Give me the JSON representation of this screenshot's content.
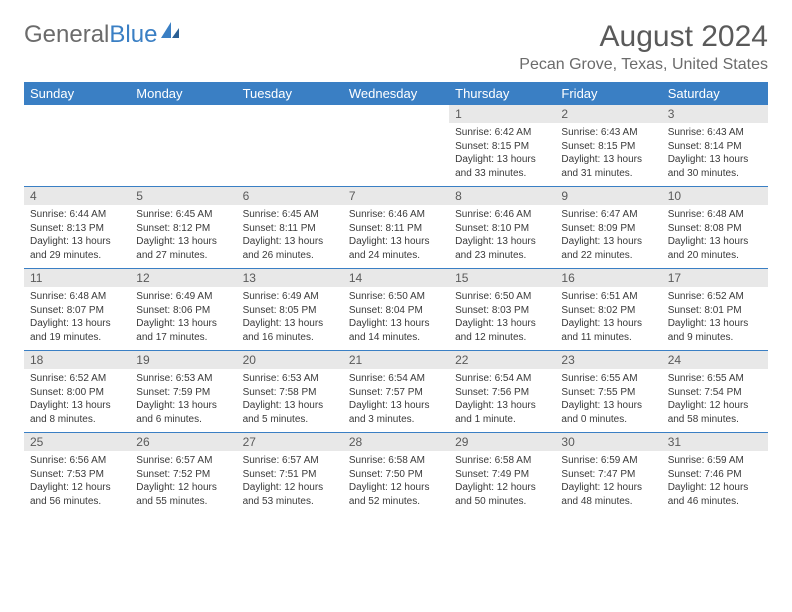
{
  "colors": {
    "header_bg": "#3a7fc4",
    "header_text": "#ffffff",
    "daynum_bg": "#e8e8e8",
    "body_text": "#3a3a3a",
    "muted_text": "#6b6b6b",
    "rule": "#3a7fc4",
    "logo_gray": "#6b6b6b",
    "logo_blue": "#3a7fc4",
    "page_bg": "#ffffff"
  },
  "typography": {
    "font_family": "Arial, Helvetica, sans-serif",
    "month_title_size": 30,
    "location_size": 16,
    "dayheader_size": 13,
    "daynum_size": 12,
    "detail_size": 10
  },
  "logo": {
    "part1": "General",
    "part2": "Blue"
  },
  "title": "August 2024",
  "location": "Pecan Grove, Texas, United States",
  "day_headers": [
    "Sunday",
    "Monday",
    "Tuesday",
    "Wednesday",
    "Thursday",
    "Friday",
    "Saturday"
  ],
  "weeks": [
    [
      null,
      null,
      null,
      null,
      {
        "n": "1",
        "sr": "Sunrise: 6:42 AM",
        "ss": "Sunset: 8:15 PM",
        "dl": "Daylight: 13 hours and 33 minutes."
      },
      {
        "n": "2",
        "sr": "Sunrise: 6:43 AM",
        "ss": "Sunset: 8:15 PM",
        "dl": "Daylight: 13 hours and 31 minutes."
      },
      {
        "n": "3",
        "sr": "Sunrise: 6:43 AM",
        "ss": "Sunset: 8:14 PM",
        "dl": "Daylight: 13 hours and 30 minutes."
      }
    ],
    [
      {
        "n": "4",
        "sr": "Sunrise: 6:44 AM",
        "ss": "Sunset: 8:13 PM",
        "dl": "Daylight: 13 hours and 29 minutes."
      },
      {
        "n": "5",
        "sr": "Sunrise: 6:45 AM",
        "ss": "Sunset: 8:12 PM",
        "dl": "Daylight: 13 hours and 27 minutes."
      },
      {
        "n": "6",
        "sr": "Sunrise: 6:45 AM",
        "ss": "Sunset: 8:11 PM",
        "dl": "Daylight: 13 hours and 26 minutes."
      },
      {
        "n": "7",
        "sr": "Sunrise: 6:46 AM",
        "ss": "Sunset: 8:11 PM",
        "dl": "Daylight: 13 hours and 24 minutes."
      },
      {
        "n": "8",
        "sr": "Sunrise: 6:46 AM",
        "ss": "Sunset: 8:10 PM",
        "dl": "Daylight: 13 hours and 23 minutes."
      },
      {
        "n": "9",
        "sr": "Sunrise: 6:47 AM",
        "ss": "Sunset: 8:09 PM",
        "dl": "Daylight: 13 hours and 22 minutes."
      },
      {
        "n": "10",
        "sr": "Sunrise: 6:48 AM",
        "ss": "Sunset: 8:08 PM",
        "dl": "Daylight: 13 hours and 20 minutes."
      }
    ],
    [
      {
        "n": "11",
        "sr": "Sunrise: 6:48 AM",
        "ss": "Sunset: 8:07 PM",
        "dl": "Daylight: 13 hours and 19 minutes."
      },
      {
        "n": "12",
        "sr": "Sunrise: 6:49 AM",
        "ss": "Sunset: 8:06 PM",
        "dl": "Daylight: 13 hours and 17 minutes."
      },
      {
        "n": "13",
        "sr": "Sunrise: 6:49 AM",
        "ss": "Sunset: 8:05 PM",
        "dl": "Daylight: 13 hours and 16 minutes."
      },
      {
        "n": "14",
        "sr": "Sunrise: 6:50 AM",
        "ss": "Sunset: 8:04 PM",
        "dl": "Daylight: 13 hours and 14 minutes."
      },
      {
        "n": "15",
        "sr": "Sunrise: 6:50 AM",
        "ss": "Sunset: 8:03 PM",
        "dl": "Daylight: 13 hours and 12 minutes."
      },
      {
        "n": "16",
        "sr": "Sunrise: 6:51 AM",
        "ss": "Sunset: 8:02 PM",
        "dl": "Daylight: 13 hours and 11 minutes."
      },
      {
        "n": "17",
        "sr": "Sunrise: 6:52 AM",
        "ss": "Sunset: 8:01 PM",
        "dl": "Daylight: 13 hours and 9 minutes."
      }
    ],
    [
      {
        "n": "18",
        "sr": "Sunrise: 6:52 AM",
        "ss": "Sunset: 8:00 PM",
        "dl": "Daylight: 13 hours and 8 minutes."
      },
      {
        "n": "19",
        "sr": "Sunrise: 6:53 AM",
        "ss": "Sunset: 7:59 PM",
        "dl": "Daylight: 13 hours and 6 minutes."
      },
      {
        "n": "20",
        "sr": "Sunrise: 6:53 AM",
        "ss": "Sunset: 7:58 PM",
        "dl": "Daylight: 13 hours and 5 minutes."
      },
      {
        "n": "21",
        "sr": "Sunrise: 6:54 AM",
        "ss": "Sunset: 7:57 PM",
        "dl": "Daylight: 13 hours and 3 minutes."
      },
      {
        "n": "22",
        "sr": "Sunrise: 6:54 AM",
        "ss": "Sunset: 7:56 PM",
        "dl": "Daylight: 13 hours and 1 minute."
      },
      {
        "n": "23",
        "sr": "Sunrise: 6:55 AM",
        "ss": "Sunset: 7:55 PM",
        "dl": "Daylight: 13 hours and 0 minutes."
      },
      {
        "n": "24",
        "sr": "Sunrise: 6:55 AM",
        "ss": "Sunset: 7:54 PM",
        "dl": "Daylight: 12 hours and 58 minutes."
      }
    ],
    [
      {
        "n": "25",
        "sr": "Sunrise: 6:56 AM",
        "ss": "Sunset: 7:53 PM",
        "dl": "Daylight: 12 hours and 56 minutes."
      },
      {
        "n": "26",
        "sr": "Sunrise: 6:57 AM",
        "ss": "Sunset: 7:52 PM",
        "dl": "Daylight: 12 hours and 55 minutes."
      },
      {
        "n": "27",
        "sr": "Sunrise: 6:57 AM",
        "ss": "Sunset: 7:51 PM",
        "dl": "Daylight: 12 hours and 53 minutes."
      },
      {
        "n": "28",
        "sr": "Sunrise: 6:58 AM",
        "ss": "Sunset: 7:50 PM",
        "dl": "Daylight: 12 hours and 52 minutes."
      },
      {
        "n": "29",
        "sr": "Sunrise: 6:58 AM",
        "ss": "Sunset: 7:49 PM",
        "dl": "Daylight: 12 hours and 50 minutes."
      },
      {
        "n": "30",
        "sr": "Sunrise: 6:59 AM",
        "ss": "Sunset: 7:47 PM",
        "dl": "Daylight: 12 hours and 48 minutes."
      },
      {
        "n": "31",
        "sr": "Sunrise: 6:59 AM",
        "ss": "Sunset: 7:46 PM",
        "dl": "Daylight: 12 hours and 46 minutes."
      }
    ]
  ]
}
